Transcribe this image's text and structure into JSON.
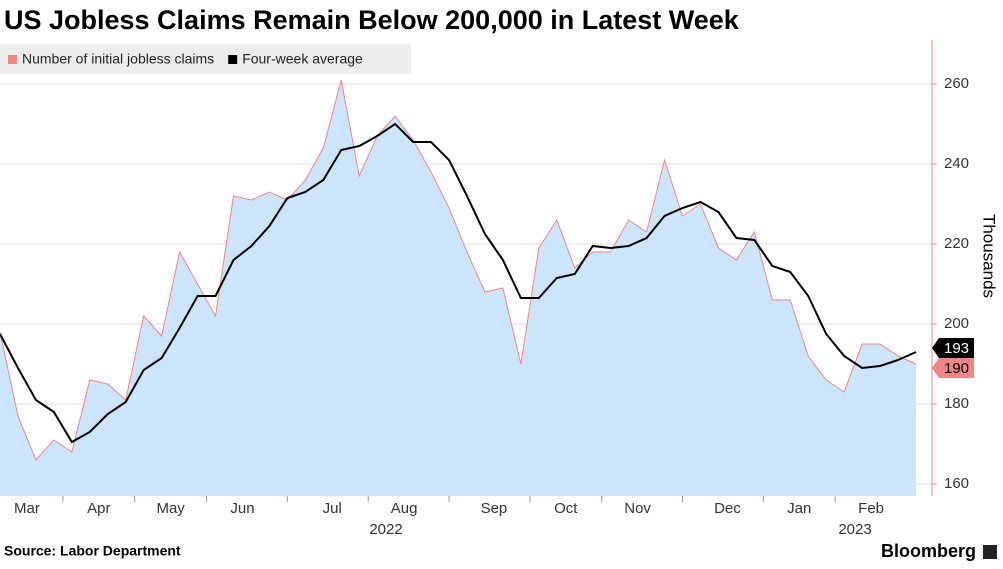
{
  "chart_data": {
    "type": "area-line",
    "title": "US Jobless Claims Remain Below 200,000 in Latest Week",
    "y_axis_label": "Thousands",
    "source": "Source: Labor Department",
    "brand": "Bloomberg",
    "categories": [
      null,
      "Mar",
      null,
      null,
      null,
      "Apr",
      null,
      null,
      null,
      "May",
      null,
      null,
      null,
      "Jun",
      null,
      null,
      null,
      null,
      "Jul",
      null,
      null,
      null,
      "Aug",
      null,
      null,
      null,
      null,
      "Sep",
      null,
      null,
      null,
      "Oct",
      null,
      null,
      null,
      "Nov",
      null,
      null,
      null,
      null,
      "Dec",
      null,
      null,
      null,
      "Jan",
      null,
      null,
      null,
      "Feb",
      null,
      null,
      null
    ],
    "year_labels": [
      "2022",
      "2023"
    ],
    "series": [
      {
        "name": "Number of initial jobless claims",
        "color": "#f08585",
        "fill": "#cce4fc",
        "values": [
          198,
          177,
          166,
          171,
          168,
          186,
          185,
          181,
          202,
          197,
          218,
          210,
          202,
          232,
          231,
          233,
          231,
          236,
          244,
          261,
          237,
          247,
          252,
          246,
          238,
          229,
          218,
          208,
          209,
          190,
          219,
          226,
          214,
          218,
          218,
          226,
          223,
          241,
          227,
          230,
          219,
          216,
          223,
          206,
          206,
          192,
          186,
          183,
          195,
          195,
          192,
          190
        ]
      },
      {
        "name": "Four-week average",
        "color": "#000000",
        "values": [
          197.5,
          189,
          181,
          178,
          170.5,
          173,
          177.5,
          180.5,
          188.5,
          191.5,
          199,
          207,
          207,
          216,
          219.5,
          224.5,
          231.5,
          233,
          236,
          243.5,
          244.5,
          247,
          250,
          245.5,
          245.5,
          241,
          232,
          222.5,
          216,
          206.5,
          206.5,
          211.5,
          212.5,
          219.5,
          219,
          219.5,
          221.5,
          227,
          229,
          230.5,
          228,
          221.5,
          221,
          214.5,
          213,
          207,
          197.5,
          192,
          189,
          189.5,
          191,
          193
        ]
      }
    ],
    "ylim": [
      157,
      271
    ],
    "yticks": [
      160,
      180,
      200,
      220,
      240,
      260
    ],
    "y_axis_side": "right"
  }
}
